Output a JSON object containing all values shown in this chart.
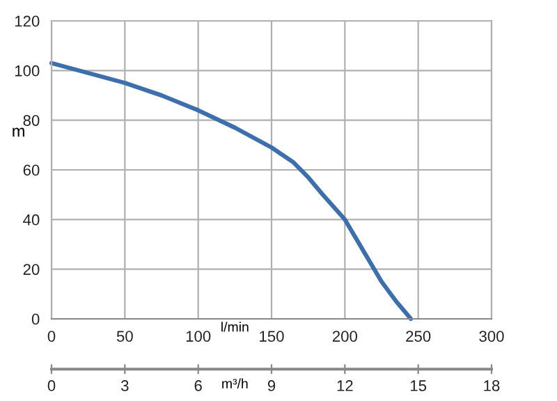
{
  "chart_data": {
    "type": "line",
    "xlabel": "l/min",
    "ylabel": "m",
    "x2label": "m³/h",
    "series": [
      {
        "color": "#3d6fad",
        "x": [
          0,
          25,
          50,
          75,
          100,
          125,
          150,
          165,
          175,
          185,
          200,
          212,
          225,
          235,
          245
        ],
        "values": [
          103,
          99,
          95,
          90,
          84,
          77,
          69,
          63,
          57,
          50,
          40,
          28,
          15,
          7,
          0
        ]
      }
    ],
    "xlim": [
      0,
      300
    ],
    "xticks": [
      0,
      50,
      100,
      150,
      200,
      250,
      300
    ],
    "x2lim": [
      0,
      18
    ],
    "x2ticks": [
      0,
      3,
      6,
      9,
      12,
      15,
      18
    ],
    "ylim": [
      0,
      120
    ],
    "yticks": [
      0,
      20,
      40,
      60,
      80,
      100,
      120
    ],
    "grid": true,
    "marker": "none",
    "line_style": "solid"
  }
}
